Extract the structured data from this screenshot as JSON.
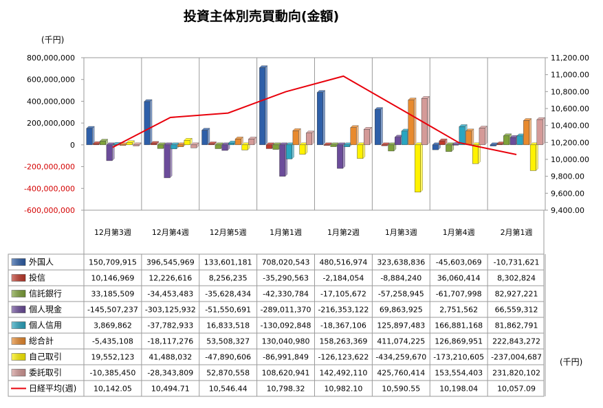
{
  "chart_data": {
    "type": "bar",
    "title": "投資主体別売買動向(金額)",
    "left_unit": "(千円)",
    "right_unit": "(千円)",
    "categories": [
      "12月第3週",
      "12月第4週",
      "12月第5週",
      "1月第1週",
      "1月第2週",
      "1月第3週",
      "1月第4週",
      "2月第1週"
    ],
    "left_axis": {
      "ylim": [
        -600000000,
        800000000
      ],
      "ticks": [
        {
          "value": 800000000,
          "label": "800,000,000"
        },
        {
          "value": 600000000,
          "label": "600,000,000"
        },
        {
          "value": 400000000,
          "label": "400,000,000"
        },
        {
          "value": 200000000,
          "label": "200,000,000"
        },
        {
          "value": 0,
          "label": "0"
        },
        {
          "value": -200000000,
          "label": "-200,000,000"
        },
        {
          "value": -400000000,
          "label": "-400,000,000"
        },
        {
          "value": -600000000,
          "label": "-600,000,000"
        }
      ]
    },
    "right_axis": {
      "ylim": [
        9400,
        11200
      ],
      "ticks": [
        {
          "value": 11200,
          "label": "11,200.00"
        },
        {
          "value": 11000,
          "label": "11,000.00"
        },
        {
          "value": 10800,
          "label": "10,800.00"
        },
        {
          "value": 10600,
          "label": "10,600.00"
        },
        {
          "value": 10400,
          "label": "10,400.00"
        },
        {
          "value": 10200,
          "label": "10,200.00"
        },
        {
          "value": 10000,
          "label": "10,000.00"
        },
        {
          "value": 9800,
          "label": "9,800.00"
        },
        {
          "value": 9600,
          "label": "9,600.00"
        },
        {
          "value": 9400,
          "label": "9,400.00"
        }
      ]
    },
    "grid": "vertical category lines",
    "legend": "data table below chart",
    "series": [
      {
        "name": "外国人",
        "color": "#2E5FA8",
        "values": [
          150709915,
          396545969,
          133601181,
          708020543,
          480516974,
          323638836,
          -45603069,
          -10731621
        ],
        "labels": [
          "150,709,915",
          "396,545,969",
          "133,601,181",
          "708,020,543",
          "480,516,974",
          "323,638,836",
          "-45,603,069",
          "-10,731,621"
        ]
      },
      {
        "name": "投信",
        "color": "#C0392B",
        "values": [
          10146969,
          12226616,
          8256235,
          -35290563,
          -2184054,
          -8884240,
          36060414,
          8302824
        ],
        "labels": [
          "10,146,969",
          "12,226,616",
          "8,256,235",
          "-35,290,563",
          "-2,184,054",
          "-8,884,240",
          "36,060,414",
          "8,302,824"
        ]
      },
      {
        "name": "信託銀行",
        "color": "#7FA23A",
        "values": [
          33185509,
          -34453483,
          -35628434,
          -42330784,
          -17105672,
          -57258945,
          -61707998,
          82927221
        ],
        "labels": [
          "33,185,509",
          "-34,453,483",
          "-35,628,434",
          "-42,330,784",
          "-17,105,672",
          "-57,258,945",
          "-61,707,998",
          "82,927,221"
        ]
      },
      {
        "name": "個人現金",
        "color": "#6B4C9A",
        "values": [
          -145507237,
          -303125932,
          -51550691,
          -289011370,
          -216353122,
          69863925,
          2751562,
          66559312
        ],
        "labels": [
          "-145,507,237",
          "-303,125,932",
          "-51,550,691",
          "-289,011,370",
          "-216,353,122",
          "69,863,925",
          "2,751,562",
          "66,559,312"
        ]
      },
      {
        "name": "個人信用",
        "color": "#2AA5C0",
        "values": [
          3869862,
          -37782933,
          16833518,
          -130092848,
          -18367106,
          125897483,
          166881168,
          81862791
        ],
        "labels": [
          "3,869,862",
          "-37,782,933",
          "16,833,518",
          "-130,092,848",
          "-18,367,106",
          "125,897,483",
          "166,881,168",
          "81,862,791"
        ]
      },
      {
        "name": "総合計",
        "color": "#E88A2E",
        "values": [
          -5435108,
          -18117276,
          53508327,
          130040980,
          158263369,
          411074225,
          126869951,
          222843272
        ],
        "labels": [
          "-5,435,108",
          "-18,117,276",
          "53,508,327",
          "130,040,980",
          "158,263,369",
          "411,074,225",
          "126,869,951",
          "222,843,272"
        ]
      },
      {
        "name": "自己取引",
        "color": "#FFF200",
        "values": [
          19552123,
          41488032,
          -47890606,
          -86991849,
          -126123622,
          -434259670,
          -173210605,
          -237004687
        ],
        "labels": [
          "19,552,123",
          "41,488,032",
          "-47,890,606",
          "-86,991,849",
          "-126,123,622",
          "-434,259,670",
          "-173,210,605",
          "-237,004,687"
        ]
      },
      {
        "name": "委託取引",
        "color": "#D49A98",
        "values": [
          -10385450,
          -28343809,
          52870558,
          108620941,
          142492110,
          425760414,
          153554403,
          231820102
        ],
        "labels": [
          "-10,385,450",
          "-28,343,809",
          "52,870,558",
          "108,620,941",
          "142,492,110",
          "425,760,414",
          "153,554,403",
          "231,820,102"
        ]
      }
    ],
    "line_series": {
      "name": "日経平均(週)",
      "color": "#E8000B",
      "axis": "right",
      "values": [
        10142.05,
        10494.71,
        10546.44,
        10798.32,
        10982.1,
        10590.55,
        10198.04,
        10057.09
      ],
      "labels": [
        "10,142.05",
        "10,494.71",
        "10,546.44",
        "10,798.32",
        "10,982.10",
        "10,590.55",
        "10,198.04",
        "10,057.09"
      ]
    }
  }
}
